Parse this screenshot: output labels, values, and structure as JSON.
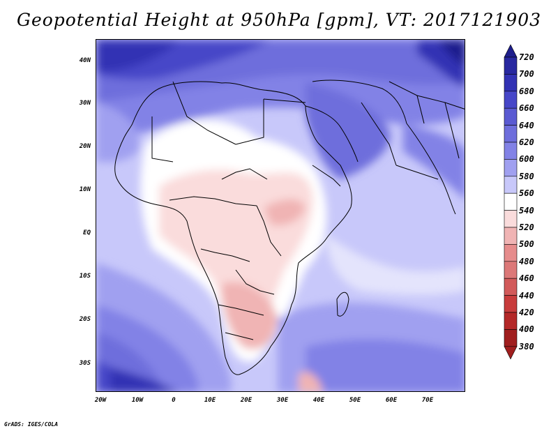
{
  "title": "Geopotential Height at 950hPa [gpm], VT: 2017121903",
  "credit": "GrADS: IGES/COLA",
  "map": {
    "variable": "Geopotential Height",
    "level": "950hPa",
    "units": "gpm",
    "valid_time": "2017121903",
    "lat_labels": [
      "40N",
      "30N",
      "20N",
      "10N",
      "EQ",
      "10S",
      "20S",
      "30S"
    ],
    "lon_labels": [
      "20W",
      "10W",
      "0",
      "10E",
      "20E",
      "30E",
      "40E",
      "50E",
      "60E",
      "70E"
    ]
  },
  "colorbar": {
    "labels": [
      "720",
      "700",
      "680",
      "660",
      "640",
      "620",
      "600",
      "580",
      "560",
      "540",
      "520",
      "500",
      "480",
      "460",
      "440",
      "420",
      "400",
      "380"
    ],
    "colors": [
      "#1e1e8c",
      "#2828a0",
      "#3232b4",
      "#4646c8",
      "#5a5ad2",
      "#6e6edc",
      "#8282e6",
      "#a0a0f0",
      "#c8c8fa",
      "#ffffff",
      "#fadcdc",
      "#f0b4b4",
      "#e68c8c",
      "#dc7878",
      "#d25a5a",
      "#c83c3c",
      "#b42828",
      "#a01e1e"
    ],
    "arrow_top_color": "#1e1e8c",
    "arrow_bottom_color": "#a01e1e"
  }
}
